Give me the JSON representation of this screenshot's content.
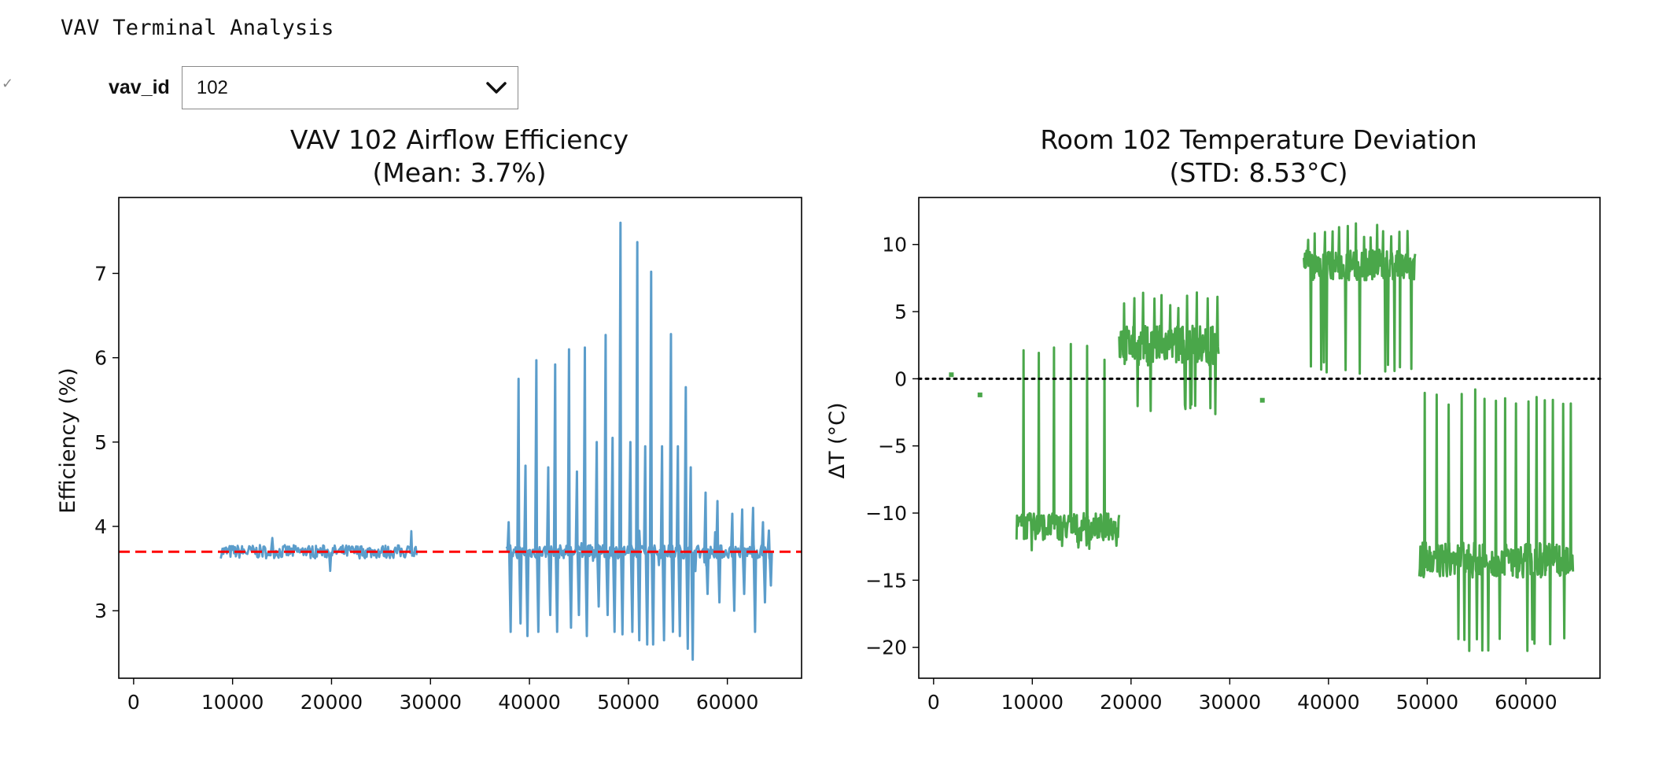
{
  "app": {
    "title": "VAV Terminal Analysis",
    "check_mark": "✓"
  },
  "dropdown": {
    "label": "vav_id",
    "value": "102"
  },
  "chart_data": [
    {
      "type": "line",
      "title": "VAV 102 Airflow Efficiency",
      "subtitle": "(Mean: 3.7%)",
      "xlabel": "",
      "ylabel": "Efficiency (%)",
      "xlim": [
        -1500,
        67500
      ],
      "ylim": [
        2.2,
        7.9
      ],
      "xticks": [
        0,
        10000,
        20000,
        30000,
        40000,
        50000,
        60000
      ],
      "yticks": [
        3,
        4,
        5,
        6,
        7
      ],
      "series_color": "#5b9dcb",
      "reference_line": {
        "y": 3.7,
        "color": "#ff0000",
        "style": "dashed"
      },
      "baseline": 3.7,
      "segments": [
        {
          "x_start": 8800,
          "x_end": 28700,
          "noise": 0.08,
          "glitch_rate": 0.0
        },
        {
          "x_start": 37700,
          "x_end": 64500,
          "noise": 0.08,
          "glitch_rate": 0.0
        }
      ],
      "spikes": [
        {
          "x": 37900,
          "y": 4.05,
          "dip": 2.75
        },
        {
          "x": 38900,
          "y": 5.75,
          "dip": 2.85
        },
        {
          "x": 39600,
          "y": 4.72,
          "dip": 2.7
        },
        {
          "x": 40700,
          "y": 5.97,
          "dip": 2.75
        },
        {
          "x": 41900,
          "y": 4.7,
          "dip": 2.95
        },
        {
          "x": 42600,
          "y": 5.92,
          "dip": 2.75
        },
        {
          "x": 44000,
          "y": 6.1,
          "dip": 2.8
        },
        {
          "x": 44800,
          "y": 4.65,
          "dip": 2.95
        },
        {
          "x": 45600,
          "y": 6.12,
          "dip": 2.7
        },
        {
          "x": 46800,
          "y": 5.0,
          "dip": 3.05
        },
        {
          "x": 47700,
          "y": 6.27,
          "dip": 2.95
        },
        {
          "x": 48400,
          "y": 5.05,
          "dip": 2.75
        },
        {
          "x": 49200,
          "y": 7.6,
          "dip": 2.72
        },
        {
          "x": 50200,
          "y": 5.0,
          "dip": 2.75
        },
        {
          "x": 50900,
          "y": 7.37,
          "dip": 2.65
        },
        {
          "x": 51700,
          "y": 4.95,
          "dip": 2.6
        },
        {
          "x": 52300,
          "y": 7.02,
          "dip": 2.6
        },
        {
          "x": 53400,
          "y": 4.95,
          "dip": 2.65
        },
        {
          "x": 54300,
          "y": 6.28,
          "dip": 2.75
        },
        {
          "x": 55000,
          "y": 4.95,
          "dip": 2.7
        },
        {
          "x": 55800,
          "y": 5.65,
          "dip": 2.55
        },
        {
          "x": 56300,
          "y": 4.7,
          "dip": 2.42
        },
        {
          "x": 57800,
          "y": 4.4,
          "dip": 3.2
        },
        {
          "x": 59000,
          "y": 4.3,
          "dip": 3.1
        },
        {
          "x": 60500,
          "y": 4.15,
          "dip": 3.0
        },
        {
          "x": 61500,
          "y": 4.2,
          "dip": 3.2
        },
        {
          "x": 62600,
          "y": 4.22,
          "dip": 2.75
        },
        {
          "x": 63600,
          "y": 4.05,
          "dip": 3.1
        },
        {
          "x": 64200,
          "y": 3.95,
          "dip": 3.3
        }
      ]
    },
    {
      "type": "line",
      "title": "Room 102 Temperature Deviation",
      "subtitle": "(STD: 8.53°C)",
      "xlabel": "",
      "ylabel": "ΔT (°C)",
      "xlim": [
        -1500,
        67500
      ],
      "ylim": [
        -22.3,
        13.5
      ],
      "xticks": [
        0,
        10000,
        20000,
        30000,
        40000,
        50000,
        60000
      ],
      "yticks": [
        -20,
        -15,
        -10,
        -5,
        0,
        5,
        10
      ],
      "series_color": "#4aa74a",
      "reference_line": {
        "y": 0,
        "color": "#000000",
        "style": "dotted"
      },
      "dots": [
        {
          "x": 1800,
          "y": 0.3
        },
        {
          "x": 4700,
          "y": -1.2
        },
        {
          "x": 33300,
          "y": -1.6
        }
      ],
      "segments": [
        {
          "x_start": 8400,
          "x_end": 18800,
          "base": -11,
          "noise": 1.0,
          "spike_to": 2.8,
          "spike_every": 1400,
          "drop_to": -13
        },
        {
          "x_start": 18800,
          "x_end": 28900,
          "base": 2.5,
          "noise": 1.5,
          "spike_to": 6.5,
          "spike_every": 900,
          "drop_to": -2.8
        },
        {
          "x_start": 37500,
          "x_end": 48800,
          "base": 8.5,
          "noise": 1.2,
          "spike_to": 11.7,
          "spike_every": 800,
          "drop_to": 0.3
        },
        {
          "x_start": 49200,
          "x_end": 64800,
          "base": -13.5,
          "noise": 1.3,
          "spike_to": -0.5,
          "spike_every": 1100,
          "drop_to": -20.3
        }
      ]
    }
  ]
}
